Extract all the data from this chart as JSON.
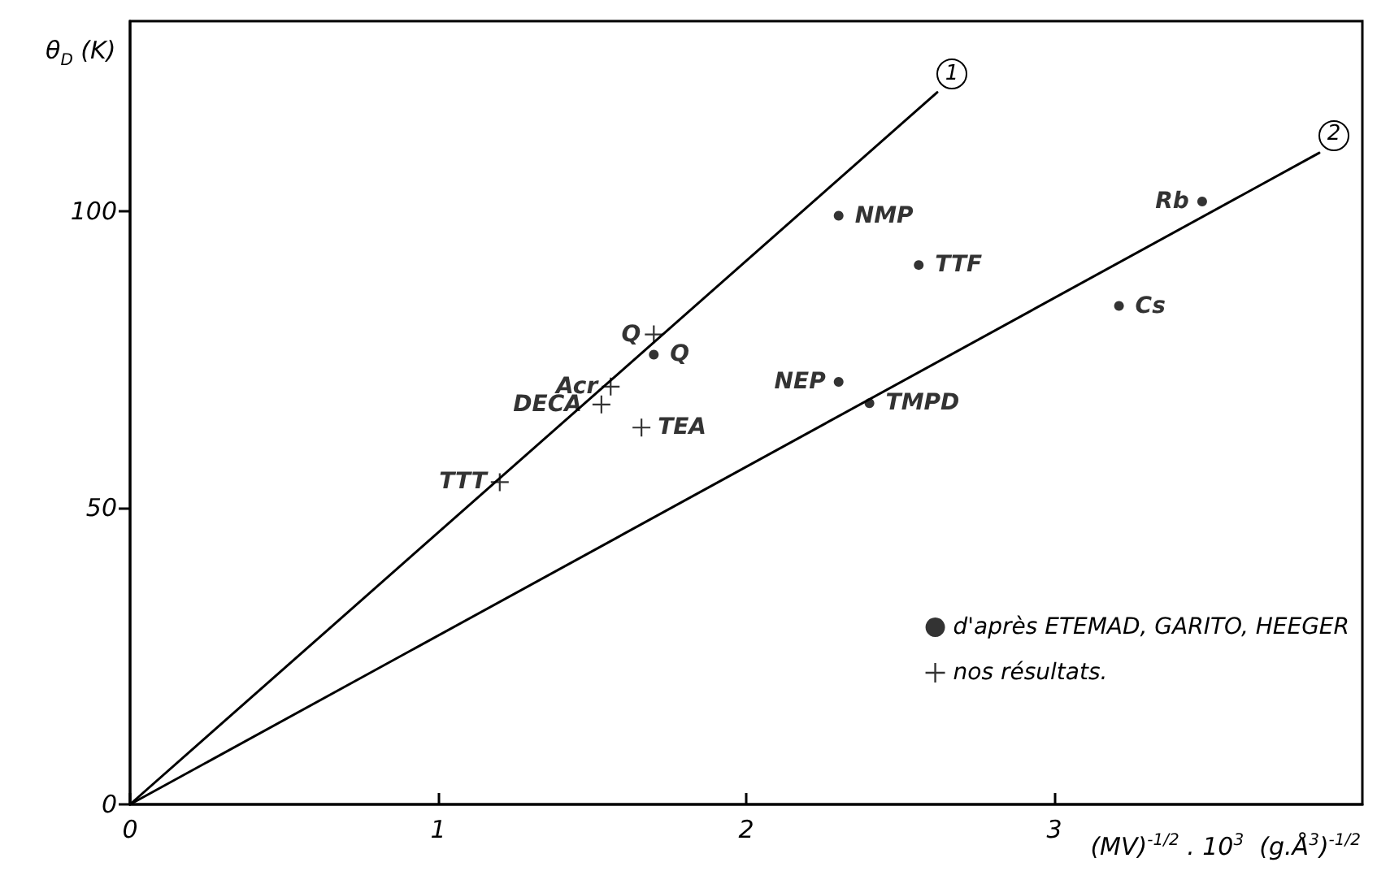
{
  "chart_data": {
    "type": "scatter",
    "xlabel": "(MV)$^{-1/2}$ . 10$^{3}$  (g.Å$^{3}$)$^{-1/2}$",
    "ylabel": "θ$_{D}$ (K)",
    "xlim": [
      0,
      4
    ],
    "ylim": [
      0,
      132
    ],
    "xticks": [
      0,
      1,
      2,
      3
    ],
    "yticks": [
      0,
      50,
      100
    ],
    "grid": false,
    "legend": "bottom right",
    "series": [
      {
        "name": "d'après ETEMAD, GARITO, HEEGER",
        "color": "#000000",
        "marker": "circle",
        "x": [
          1.7,
          2.3,
          2.56,
          3.21,
          3.48,
          2.3,
          2.4
        ],
        "values": [
          75.8,
          99.2,
          90.9,
          84,
          101.6,
          71.2,
          67.6
        ]
      },
      {
        "name": "nos résultats.",
        "color": "#000000",
        "marker": "cross",
        "x": [
          1.7,
          1.56,
          1.53,
          1.66,
          1.2
        ],
        "values": [
          79.2,
          70.4,
          67.4,
          63.5,
          54.3
        ]
      },
      {
        "type": "line",
        "color": "#000000",
        "marker": "none",
        "line_style": "solid",
        "x": [
          0,
          2.62
        ],
        "values": [
          0,
          120
        ]
      },
      {
        "type": "line",
        "color": "#000000",
        "marker": "none",
        "line_style": "solid",
        "x": [
          0,
          3.86
        ],
        "values": [
          0,
          109.8
        ]
      }
    ],
    "annotations": [
      {
        "text": "Q",
        "x": 1.7,
        "y": 79.2
      },
      {
        "text": "Q",
        "x": 1.7,
        "y": 75.8
      },
      {
        "text": "Acr",
        "x": 1.56,
        "y": 70.4
      },
      {
        "text": "DECA",
        "x": 1.53,
        "y": 67.4
      },
      {
        "text": "TEA",
        "x": 1.66,
        "y": 63.5
      },
      {
        "text": "TTT",
        "x": 1.2,
        "y": 54.3
      },
      {
        "text": "NMP",
        "x": 2.3,
        "y": 99.2
      },
      {
        "text": "TTF",
        "x": 2.56,
        "y": 90.9
      },
      {
        "text": "Cs",
        "x": 3.21,
        "y": 84
      },
      {
        "text": "Rb",
        "x": 3.48,
        "y": 101.6
      },
      {
        "text": "NEP",
        "x": 2.3,
        "y": 71.2
      },
      {
        "text": "TMPD",
        "x": 2.4,
        "y": 67.6
      },
      {
        "text": "1",
        "x": 2.62,
        "y": 120
      },
      {
        "text": "2",
        "x": 3.86,
        "y": 109.8
      }
    ]
  }
}
